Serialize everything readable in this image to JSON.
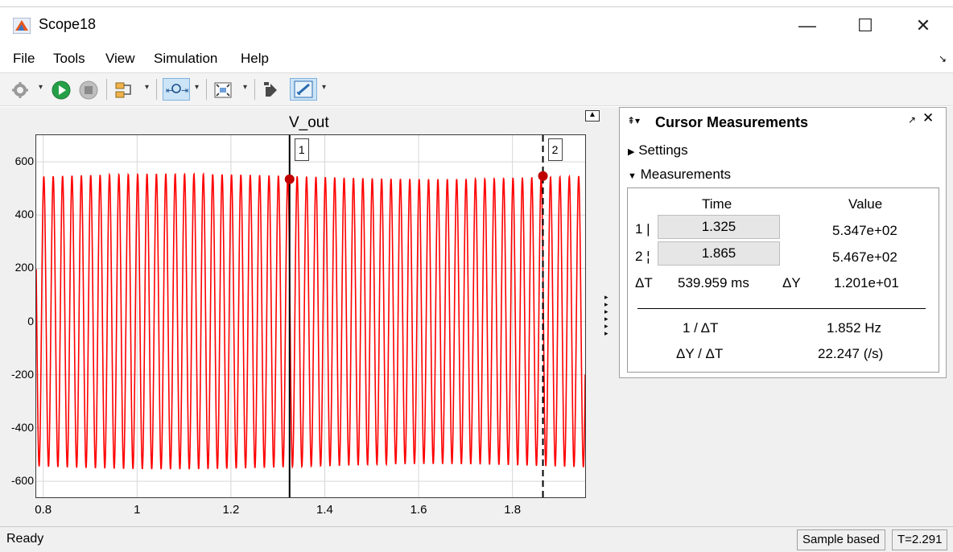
{
  "window": {
    "title": "Scope18",
    "minimize_glyph": "—",
    "maximize_glyph": "☐",
    "close_glyph": "✕",
    "app_icon": "matlab-icon"
  },
  "menu": {
    "items": [
      "File",
      "Tools",
      "View",
      "Simulation",
      "Help"
    ]
  },
  "toolbar": {
    "icons": [
      "gear-icon",
      "run-icon",
      "stop-icon",
      "step-icon",
      "zoom-icon",
      "fit-icon",
      "signal-icon",
      "cursor-measure-icon"
    ]
  },
  "plot": {
    "title": "V_out",
    "cursor1_label": "1",
    "cursor2_label": "2"
  },
  "chart_data": {
    "type": "line",
    "title": "V_out",
    "xlim": [
      0.785,
      1.955
    ],
    "ylim": [
      -660,
      700
    ],
    "xticks": [
      0.8,
      1,
      1.2,
      1.4,
      1.6,
      1.8
    ],
    "xtick_labels": [
      "0.8",
      "1",
      "1.2",
      "1.4",
      "1.6",
      "1.8"
    ],
    "yticks": [
      600,
      400,
      200,
      0,
      -200,
      -400,
      -600
    ],
    "ytick_labels": [
      "600",
      "400",
      "200",
      "0",
      "-200",
      "-400",
      "-600"
    ],
    "grid": true,
    "series": [
      {
        "color": "#ff0000",
        "frequency_hz": 50,
        "amplitude": 545,
        "x_start": 0.785,
        "x_end": 1.955
      }
    ],
    "cursors": [
      {
        "label": "1",
        "x": 1.325,
        "y": 534.7,
        "style": "solid"
      },
      {
        "label": "2",
        "x": 1.865,
        "y": 546.7,
        "style": "dashed"
      }
    ]
  },
  "panel": {
    "title": "Cursor Measurements",
    "settings_label": "Settings",
    "measurements_label": "Measurements",
    "header_time": "Time",
    "header_value": "Value",
    "row1_label": "1 |",
    "row1_time": "1.325",
    "row1_value": "5.347e+02",
    "row2_label": "2 ¦",
    "row2_time": "1.865",
    "row2_value": "5.467e+02",
    "dt_label": "ΔT",
    "dt_value": "539.959 ms",
    "dy_label": "ΔY",
    "dy_value": "1.201e+01",
    "inv_dt_label": "1 / ΔT",
    "inv_dt_value": "1.852 Hz",
    "slope_label": "ΔY / ΔT",
    "slope_value": "22.247 (/s)"
  },
  "status": {
    "left_text": "Ready",
    "mode": "Sample based",
    "time": "T=2.291"
  },
  "colors": {
    "signal": "#ff0000",
    "cursor_marker": "#c00000",
    "active_tool": "#cce4f7"
  }
}
